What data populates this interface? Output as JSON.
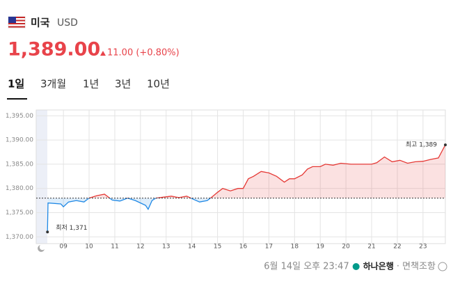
{
  "header": {
    "country": "미국",
    "currency": "USD",
    "price": "1,389.00",
    "change": "11.00 (+0.80%)"
  },
  "tabs": [
    "1일",
    "3개월",
    "1년",
    "3년",
    "10년"
  ],
  "footer": {
    "timestamp": "6월 14일 오후 23:47",
    "bank": "하나은행",
    "disclaimer": "· 면책조항"
  },
  "chart_data": {
    "type": "line",
    "x": [
      8.38,
      8.4,
      8.9,
      9.0,
      9.2,
      9.5,
      9.8,
      10.0,
      10.3,
      10.6,
      10.9,
      11.2,
      11.5,
      11.8,
      12.0,
      12.2,
      12.3,
      12.45,
      12.6,
      12.9,
      13.2,
      13.5,
      13.8,
      14.0,
      14.3,
      14.6,
      14.8,
      15.0,
      15.2,
      15.5,
      15.8,
      16.0,
      16.2,
      16.4,
      16.7,
      17.0,
      17.3,
      17.6,
      17.8,
      18.0,
      18.3,
      18.5,
      18.7,
      19.0,
      19.2,
      19.5,
      19.8,
      20.2,
      20.6,
      21.0,
      21.2,
      21.5,
      21.8,
      22.1,
      22.4,
      22.7,
      23.0,
      23.3,
      23.6,
      23.87
    ],
    "values": [
      1371,
      1377,
      1376.8,
      1376.2,
      1377.2,
      1377.5,
      1377.2,
      1378,
      1378.5,
      1378.8,
      1377.6,
      1377.4,
      1378.0,
      1377.5,
      1377.0,
      1376.5,
      1375.7,
      1377.5,
      1378.0,
      1378.2,
      1378.4,
      1378.1,
      1378.4,
      1377.9,
      1377.2,
      1377.5,
      1378.3,
      1379.2,
      1380.0,
      1379.5,
      1380.0,
      1380.0,
      1382.0,
      1382.5,
      1383.5,
      1383.2,
      1382.5,
      1381.3,
      1382.0,
      1382.0,
      1382.8,
      1384.0,
      1384.5,
      1384.5,
      1385.0,
      1384.8,
      1385.2,
      1385.0,
      1385.0,
      1385.0,
      1385.3,
      1386.5,
      1385.5,
      1385.8,
      1385.2,
      1385.5,
      1385.6,
      1386.0,
      1386.3,
      1389
    ],
    "baseline": 1378,
    "up_color": "#e53935",
    "down_color": "#1e88e5",
    "low_label": "최저 1,371",
    "high_label": "최고 1,389",
    "xlim": [
      7.94,
      23.87
    ],
    "xticks": [
      {
        "value": 9,
        "label": "09"
      },
      10,
      11,
      12,
      13,
      14,
      15,
      16,
      17,
      18,
      19,
      20,
      21,
      22,
      23
    ],
    "ylim": [
      1368.6,
      1396.2
    ],
    "yticks": [
      {
        "value": 1370,
        "label": "1,370.00"
      },
      {
        "value": 1375,
        "label": "1,375.00"
      },
      {
        "value": 1380,
        "label": "1,380.00"
      },
      {
        "value": 1385,
        "label": "1,385.00"
      },
      {
        "value": 1390,
        "label": "1,390.00"
      },
      {
        "value": 1395,
        "label": "1,395.00"
      }
    ],
    "grid": true
  }
}
